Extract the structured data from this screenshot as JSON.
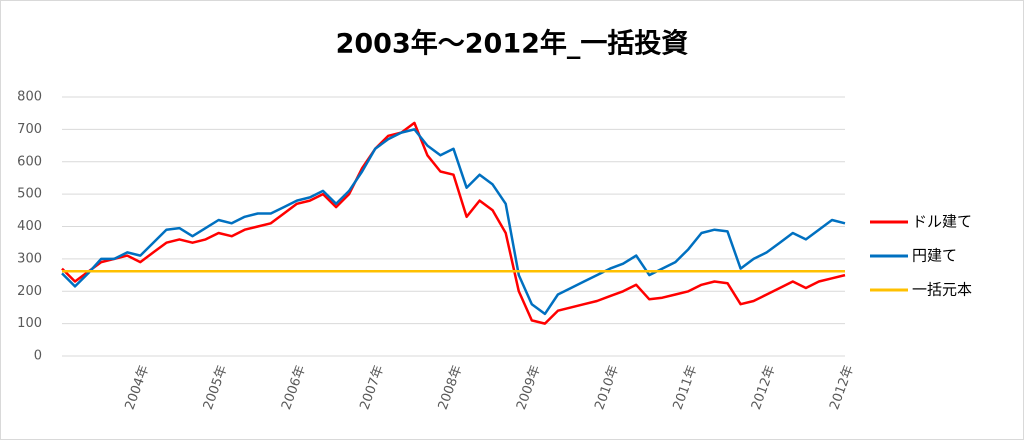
{
  "chart_data": {
    "type": "line",
    "title": "2003年～2012年_一括投資",
    "categories": [
      null,
      null,
      null,
      null,
      null,
      null,
      "2004年",
      null,
      null,
      null,
      null,
      null,
      "2005年",
      null,
      null,
      null,
      null,
      null,
      "2006年",
      null,
      null,
      null,
      null,
      null,
      "2007年",
      null,
      null,
      null,
      null,
      null,
      "2008年",
      null,
      null,
      null,
      null,
      null,
      "2009年",
      null,
      null,
      null,
      null,
      null,
      "2010年",
      null,
      null,
      null,
      null,
      null,
      "2011年",
      null,
      null,
      null,
      null,
      null,
      "2012年",
      null,
      null,
      null,
      null,
      null,
      "2012年"
    ],
    "series": [
      {
        "name": "ドル建て",
        "color": "#ff0000",
        "values": [
          270,
          230,
          260,
          290,
          300,
          310,
          290,
          320,
          350,
          360,
          350,
          360,
          380,
          370,
          390,
          400,
          410,
          440,
          470,
          480,
          500,
          460,
          500,
          580,
          640,
          680,
          690,
          720,
          620,
          570,
          560,
          430,
          480,
          450,
          380,
          200,
          110,
          100,
          140,
          150,
          160,
          170,
          185,
          200,
          220,
          175,
          180,
          190,
          200,
          220,
          230,
          225,
          160,
          170,
          190,
          210,
          230,
          210,
          230,
          240,
          250
        ]
      },
      {
        "name": "円建て",
        "color": "#0070c0",
        "values": [
          255,
          215,
          255,
          300,
          300,
          320,
          310,
          350,
          390,
          395,
          370,
          395,
          420,
          410,
          430,
          440,
          440,
          460,
          480,
          490,
          510,
          470,
          510,
          570,
          640,
          670,
          690,
          700,
          650,
          620,
          640,
          520,
          560,
          530,
          470,
          250,
          160,
          130,
          190,
          210,
          230,
          250,
          270,
          285,
          310,
          250,
          270,
          290,
          330,
          380,
          390,
          385,
          270,
          300,
          320,
          350,
          380,
          360,
          390,
          420,
          410
        ]
      },
      {
        "name": "一括元本",
        "color": "#ffc000",
        "values": [
          262,
          262,
          262,
          262,
          262,
          262,
          262,
          262,
          262,
          262,
          262,
          262,
          262,
          262,
          262,
          262,
          262,
          262,
          262,
          262,
          262,
          262,
          262,
          262,
          262,
          262,
          262,
          262,
          262,
          262,
          262,
          262,
          262,
          262,
          262,
          262,
          262,
          262,
          262,
          262,
          262,
          262,
          262,
          262,
          262,
          262,
          262,
          262,
          262,
          262,
          262,
          262,
          262,
          262,
          262,
          262,
          262,
          262,
          262,
          262,
          262
        ]
      }
    ],
    "ylim": [
      0,
      800
    ],
    "yticks": [
      0,
      100,
      200,
      300,
      400,
      500,
      600,
      700,
      800
    ],
    "grid": true,
    "legend": "right"
  }
}
